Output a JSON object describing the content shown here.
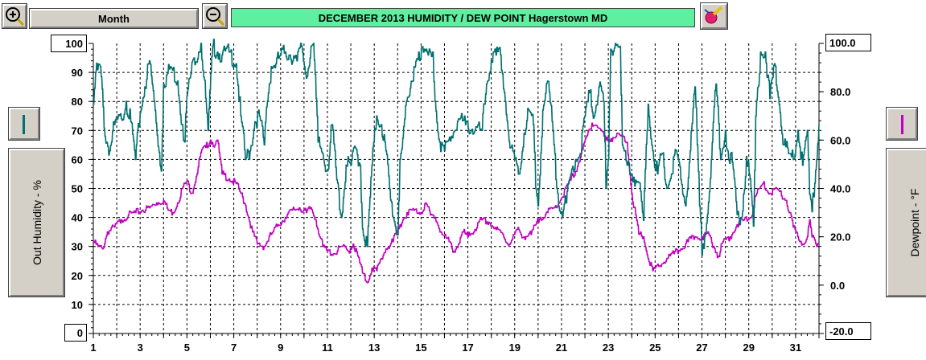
{
  "toolbar": {
    "mode_label": "Month",
    "title": "DECEMBER  2013  HUMIDITY / DEW POINT  Hagerstown MD"
  },
  "left_axis": {
    "label": "Out Humidity - %",
    "max_label": "100",
    "min_label": "0",
    "series_color": "#007070"
  },
  "right_axis": {
    "label": "Dewpoint - °F",
    "max_label": "100.0",
    "min_label": "-20.0",
    "series_color": "#c000c0"
  },
  "chart_data": {
    "type": "line",
    "title": "DECEMBER  2013  HUMIDITY / DEW POINT  Hagerstown MD",
    "xlabel": "",
    "x_ticks": [
      1,
      3,
      5,
      7,
      9,
      11,
      13,
      15,
      17,
      19,
      21,
      23,
      25,
      27,
      29,
      31
    ],
    "xlim": [
      1,
      32
    ],
    "grid": true,
    "series": [
      {
        "axis": "left",
        "color": "#007070",
        "ylim": [
          0,
          100
        ],
        "y_ticks": [
          0,
          10,
          20,
          30,
          40,
          50,
          60,
          70,
          80,
          90,
          100
        ],
        "points": [
          [
            1.0,
            79
          ],
          [
            1.1,
            90
          ],
          [
            1.3,
            92
          ],
          [
            1.5,
            68
          ],
          [
            1.7,
            63
          ],
          [
            1.9,
            72
          ],
          [
            2.2,
            74
          ],
          [
            2.4,
            80
          ],
          [
            2.6,
            73
          ],
          [
            2.8,
            60
          ],
          [
            3.0,
            76
          ],
          [
            3.2,
            85
          ],
          [
            3.4,
            94
          ],
          [
            3.6,
            80
          ],
          [
            3.9,
            56
          ],
          [
            4.0,
            86
          ],
          [
            4.3,
            92
          ],
          [
            4.6,
            87
          ],
          [
            4.8,
            72
          ],
          [
            4.9,
            66
          ],
          [
            5.0,
            82
          ],
          [
            5.3,
            95
          ],
          [
            5.5,
            97
          ],
          [
            5.6,
            100
          ],
          [
            5.8,
            81
          ],
          [
            5.9,
            70
          ],
          [
            6.1,
            99
          ],
          [
            6.3,
            97
          ],
          [
            6.5,
            96
          ],
          [
            6.8,
            97
          ],
          [
            7.1,
            93
          ],
          [
            7.3,
            75
          ],
          [
            7.5,
            60
          ],
          [
            7.7,
            63
          ],
          [
            7.9,
            73
          ],
          [
            8.1,
            75
          ],
          [
            8.3,
            65
          ],
          [
            8.4,
            78
          ],
          [
            8.6,
            92
          ],
          [
            8.8,
            93
          ],
          [
            9.0,
            96
          ],
          [
            9.2,
            97
          ],
          [
            9.4,
            96
          ],
          [
            9.6,
            95
          ],
          [
            9.7,
            94
          ],
          [
            9.9,
            99
          ],
          [
            10.1,
            88
          ],
          [
            10.3,
            99
          ],
          [
            10.4,
            100
          ],
          [
            10.6,
            66
          ],
          [
            10.8,
            62
          ],
          [
            11.0,
            56
          ],
          [
            11.2,
            72
          ],
          [
            11.4,
            53
          ],
          [
            11.6,
            40
          ],
          [
            11.8,
            58
          ],
          [
            12.0,
            58
          ],
          [
            12.2,
            64
          ],
          [
            12.4,
            58
          ],
          [
            12.5,
            36
          ],
          [
            12.7,
            30
          ],
          [
            12.9,
            58
          ],
          [
            13.1,
            75
          ],
          [
            13.3,
            72
          ],
          [
            13.5,
            63
          ],
          [
            13.7,
            46
          ],
          [
            13.9,
            37
          ],
          [
            14.0,
            34
          ],
          [
            14.1,
            60
          ],
          [
            14.3,
            74
          ],
          [
            14.5,
            82
          ],
          [
            14.7,
            92
          ],
          [
            14.9,
            97
          ],
          [
            15.1,
            97
          ],
          [
            15.3,
            96
          ],
          [
            15.4,
            97
          ],
          [
            15.5,
            97
          ],
          [
            15.6,
            80
          ],
          [
            15.8,
            66
          ],
          [
            16.0,
            63
          ],
          [
            16.3,
            68
          ],
          [
            16.6,
            74
          ],
          [
            16.9,
            72
          ],
          [
            17.3,
            70
          ],
          [
            17.6,
            70
          ],
          [
            17.8,
            86
          ],
          [
            18.0,
            94
          ],
          [
            18.2,
            96
          ],
          [
            18.4,
            96
          ],
          [
            18.6,
            80
          ],
          [
            18.8,
            64
          ],
          [
            19.0,
            60
          ],
          [
            19.2,
            55
          ],
          [
            19.4,
            69
          ],
          [
            19.6,
            77
          ],
          [
            19.8,
            72
          ],
          [
            19.9,
            50
          ],
          [
            20.0,
            44
          ],
          [
            20.2,
            77
          ],
          [
            20.4,
            87
          ],
          [
            20.6,
            73
          ],
          [
            20.8,
            50
          ],
          [
            21.0,
            42
          ],
          [
            21.2,
            45
          ],
          [
            21.4,
            55
          ],
          [
            21.6,
            60
          ],
          [
            21.8,
            62
          ],
          [
            22.0,
            75
          ],
          [
            22.2,
            83
          ],
          [
            22.4,
            75
          ],
          [
            22.6,
            85
          ],
          [
            22.8,
            80
          ],
          [
            22.9,
            50
          ],
          [
            23.0,
            60
          ],
          [
            23.1,
            98
          ],
          [
            23.3,
            100
          ],
          [
            23.5,
            99
          ],
          [
            23.6,
            65
          ],
          [
            23.8,
            58
          ],
          [
            24.0,
            55
          ],
          [
            24.3,
            52
          ],
          [
            24.5,
            39
          ],
          [
            24.7,
            79
          ],
          [
            24.9,
            63
          ],
          [
            25.1,
            55
          ],
          [
            25.3,
            62
          ],
          [
            25.5,
            50
          ],
          [
            25.7,
            55
          ],
          [
            25.9,
            63
          ],
          [
            26.1,
            53
          ],
          [
            26.3,
            44
          ],
          [
            26.5,
            63
          ],
          [
            26.7,
            85
          ],
          [
            26.8,
            65
          ],
          [
            26.9,
            44
          ],
          [
            27.0,
            27
          ],
          [
            27.2,
            38
          ],
          [
            27.4,
            60
          ],
          [
            27.6,
            86
          ],
          [
            27.8,
            60
          ],
          [
            28.0,
            70
          ],
          [
            28.1,
            63
          ],
          [
            28.3,
            59
          ],
          [
            28.5,
            41
          ],
          [
            28.7,
            40
          ],
          [
            28.9,
            61
          ],
          [
            29.1,
            49
          ],
          [
            29.2,
            37
          ],
          [
            29.3,
            75
          ],
          [
            29.5,
            97
          ],
          [
            29.7,
            97
          ],
          [
            29.9,
            81
          ],
          [
            30.1,
            93
          ],
          [
            30.3,
            79
          ],
          [
            30.5,
            65
          ],
          [
            30.7,
            62
          ],
          [
            30.9,
            60
          ],
          [
            31.1,
            70
          ],
          [
            31.3,
            58
          ],
          [
            31.5,
            70
          ],
          [
            31.6,
            48
          ],
          [
            31.7,
            42
          ],
          [
            31.9,
            60
          ],
          [
            32.0,
            72
          ]
        ]
      },
      {
        "axis": "right",
        "color": "#c000c0",
        "ylim": [
          -20,
          100
        ],
        "y_ticks": [
          -20,
          0,
          20,
          40,
          60,
          80,
          100
        ],
        "points": [
          [
            1.0,
            18
          ],
          [
            1.2,
            16
          ],
          [
            1.4,
            15
          ],
          [
            1.6,
            22
          ],
          [
            1.9,
            24
          ],
          [
            2.2,
            27
          ],
          [
            2.5,
            29
          ],
          [
            2.8,
            30
          ],
          [
            3.1,
            31
          ],
          [
            3.4,
            32
          ],
          [
            3.7,
            34
          ],
          [
            4.0,
            35
          ],
          [
            4.2,
            31
          ],
          [
            4.4,
            30
          ],
          [
            4.6,
            34
          ],
          [
            4.8,
            40
          ],
          [
            5.0,
            43
          ],
          [
            5.2,
            38
          ],
          [
            5.4,
            45
          ],
          [
            5.6,
            55
          ],
          [
            5.8,
            57
          ],
          [
            6.0,
            60
          ],
          [
            6.2,
            58
          ],
          [
            6.3,
            60
          ],
          [
            6.5,
            46
          ],
          [
            6.8,
            44
          ],
          [
            7.1,
            42
          ],
          [
            7.3,
            38
          ],
          [
            7.5,
            33
          ],
          [
            7.8,
            22
          ],
          [
            8.0,
            17
          ],
          [
            8.3,
            16
          ],
          [
            8.6,
            21
          ],
          [
            8.9,
            25
          ],
          [
            9.2,
            28
          ],
          [
            9.5,
            31
          ],
          [
            9.8,
            32
          ],
          [
            10.1,
            30
          ],
          [
            10.3,
            32
          ],
          [
            10.5,
            27
          ],
          [
            10.8,
            16
          ],
          [
            11.0,
            14
          ],
          [
            11.3,
            13
          ],
          [
            11.6,
            16
          ],
          [
            11.9,
            14
          ],
          [
            12.1,
            17
          ],
          [
            12.3,
            12
          ],
          [
            12.5,
            5
          ],
          [
            12.7,
            1
          ],
          [
            12.9,
            7
          ],
          [
            13.1,
            6
          ],
          [
            13.3,
            11
          ],
          [
            13.5,
            15
          ],
          [
            13.8,
            18
          ],
          [
            14.1,
            25
          ],
          [
            14.4,
            30
          ],
          [
            14.7,
            31
          ],
          [
            15.0,
            30
          ],
          [
            15.2,
            34
          ],
          [
            15.4,
            29
          ],
          [
            15.6,
            28
          ],
          [
            15.9,
            21
          ],
          [
            16.2,
            18
          ],
          [
            16.4,
            14
          ],
          [
            16.6,
            17
          ],
          [
            16.8,
            22
          ],
          [
            17.0,
            20
          ],
          [
            17.3,
            23
          ],
          [
            17.6,
            27
          ],
          [
            17.9,
            26
          ],
          [
            18.2,
            23
          ],
          [
            18.5,
            21
          ],
          [
            18.7,
            17
          ],
          [
            18.9,
            19
          ],
          [
            19.1,
            23
          ],
          [
            19.4,
            20
          ],
          [
            19.7,
            21
          ],
          [
            19.9,
            25
          ],
          [
            20.1,
            28
          ],
          [
            20.4,
            30
          ],
          [
            20.7,
            32
          ],
          [
            21.0,
            36
          ],
          [
            21.3,
            42
          ],
          [
            21.6,
            47
          ],
          [
            21.9,
            56
          ],
          [
            22.1,
            62
          ],
          [
            22.3,
            67
          ],
          [
            22.5,
            66
          ],
          [
            22.7,
            64
          ],
          [
            22.9,
            60
          ],
          [
            23.2,
            61
          ],
          [
            23.5,
            62
          ],
          [
            23.8,
            59
          ],
          [
            24.0,
            38
          ],
          [
            24.3,
            21
          ],
          [
            24.5,
            20
          ],
          [
            24.7,
            11
          ],
          [
            24.9,
            6
          ],
          [
            25.2,
            8
          ],
          [
            25.5,
            11
          ],
          [
            25.8,
            13
          ],
          [
            26.1,
            15
          ],
          [
            26.4,
            18
          ],
          [
            26.7,
            20
          ],
          [
            27.0,
            20
          ],
          [
            27.3,
            21
          ],
          [
            27.5,
            16
          ],
          [
            27.7,
            12
          ],
          [
            27.9,
            18
          ],
          [
            28.2,
            20
          ],
          [
            28.5,
            25
          ],
          [
            28.8,
            27
          ],
          [
            29.1,
            28
          ],
          [
            29.3,
            37
          ],
          [
            29.6,
            42
          ],
          [
            29.9,
            38
          ],
          [
            30.2,
            40
          ],
          [
            30.4,
            37
          ],
          [
            30.6,
            35
          ],
          [
            30.9,
            24
          ],
          [
            31.1,
            20
          ],
          [
            31.3,
            17
          ],
          [
            31.5,
            20
          ],
          [
            31.6,
            27
          ],
          [
            31.7,
            20
          ],
          [
            31.9,
            16
          ],
          [
            32.0,
            17
          ]
        ]
      }
    ]
  }
}
